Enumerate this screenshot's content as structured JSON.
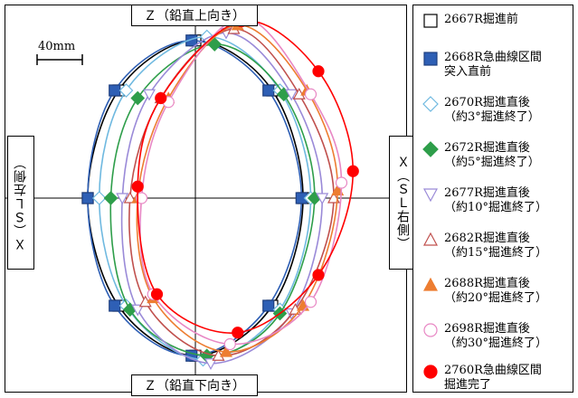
{
  "axes": {
    "z_top": "Ｚ（鉛直上向き）",
    "z_bottom": "Ｚ（鉛直下向き）",
    "x_left": "Ｘ（ＳＬ左側）",
    "x_right": "Ｘ（ＳＬ右側）",
    "scale": "40mm"
  },
  "chart_data": {
    "type": "scatter",
    "grid": false,
    "legend_position": "right",
    "series": [
      {
        "name": "2667R掘進前",
        "color": "#000000",
        "marker": "square-open",
        "points": [
          [
            0,
            205
          ],
          [
            100,
            140
          ],
          [
            140,
            0
          ],
          [
            100,
            -140
          ],
          [
            0,
            -205
          ],
          [
            -100,
            -140
          ],
          [
            -140,
            0
          ],
          [
            -100,
            140
          ],
          [
            0,
            205
          ]
        ]
      },
      {
        "name": "2668R急曲線区間\n突入直前",
        "color": "#2e5fb5",
        "marker": "square-filled",
        "points": [
          [
            -5,
            205
          ],
          [
            95,
            140
          ],
          [
            138,
            0
          ],
          [
            95,
            -140
          ],
          [
            -5,
            -205
          ],
          [
            -105,
            -140
          ],
          [
            -140,
            0
          ],
          [
            -105,
            140
          ],
          [
            -5,
            205
          ]
        ]
      },
      {
        "name": "2670R掘進直後\n（約3°掘進終了）",
        "color": "#6fb9e0",
        "marker": "diamond-open",
        "points": [
          [
            15,
            210
          ],
          [
            110,
            140
          ],
          [
            150,
            0
          ],
          [
            110,
            -145
          ],
          [
            10,
            -210
          ],
          [
            -90,
            -140
          ],
          [
            -125,
            0
          ],
          [
            -90,
            140
          ],
          [
            15,
            210
          ]
        ]
      },
      {
        "name": "2672R掘進直後\n（約5°掘進終了）",
        "color": "#2e9e4a",
        "marker": "diamond-filled",
        "points": [
          [
            25,
            200
          ],
          [
            115,
            135
          ],
          [
            155,
            0
          ],
          [
            110,
            -150
          ],
          [
            15,
            -205
          ],
          [
            -85,
            -145
          ],
          [
            -110,
            0
          ],
          [
            -75,
            130
          ],
          [
            25,
            200
          ]
        ]
      },
      {
        "name": "2677R掘進直後\n（約10°掘進終了）",
        "color": "#9a8ad8",
        "marker": "triangle-down-open",
        "points": [
          [
            40,
            215
          ],
          [
            125,
            135
          ],
          [
            165,
            0
          ],
          [
            125,
            -150
          ],
          [
            20,
            -215
          ],
          [
            -75,
            -145
          ],
          [
            -95,
            0
          ],
          [
            -60,
            135
          ],
          [
            40,
            215
          ]
        ]
      },
      {
        "name": "2682R掘進直後\n（約15°掘進終了）",
        "color": "#c0504d",
        "marker": "triangle-open",
        "points": [
          [
            50,
            220
          ],
          [
            135,
            135
          ],
          [
            180,
            0
          ],
          [
            130,
            -145
          ],
          [
            30,
            -205
          ],
          [
            -65,
            -135
          ],
          [
            -85,
            0
          ],
          [
            -45,
            130
          ],
          [
            50,
            220
          ]
        ]
      },
      {
        "name": "2688R掘進直後\n（約20°掘進終了）",
        "color": "#ed7d31",
        "marker": "triangle-filled",
        "points": [
          [
            55,
            225
          ],
          [
            145,
            140
          ],
          [
            185,
            10
          ],
          [
            140,
            -140
          ],
          [
            40,
            -200
          ],
          [
            -55,
            -130
          ],
          [
            -75,
            0
          ],
          [
            -35,
            130
          ],
          [
            55,
            225
          ]
        ]
      },
      {
        "name": "2698R掘進直後\n（約30°掘進終了）",
        "color": "#e887c4",
        "marker": "circle-open",
        "points": [
          [
            60,
            235
          ],
          [
            150,
            135
          ],
          [
            190,
            20
          ],
          [
            150,
            -135
          ],
          [
            45,
            -190
          ],
          [
            -55,
            -125
          ],
          [
            -70,
            0
          ],
          [
            -35,
            125
          ],
          [
            60,
            235
          ]
        ]
      },
      {
        "name": "2760R急曲線区間\n掘進完了",
        "color": "#ff0000",
        "marker": "circle-filled",
        "points": [
          [
            60,
            230
          ],
          [
            160,
            165
          ],
          [
            205,
            35
          ],
          [
            160,
            -100
          ],
          [
            55,
            -175
          ],
          [
            -50,
            -125
          ],
          [
            -75,
            15
          ],
          [
            -45,
            130
          ],
          [
            60,
            230
          ]
        ]
      }
    ]
  }
}
